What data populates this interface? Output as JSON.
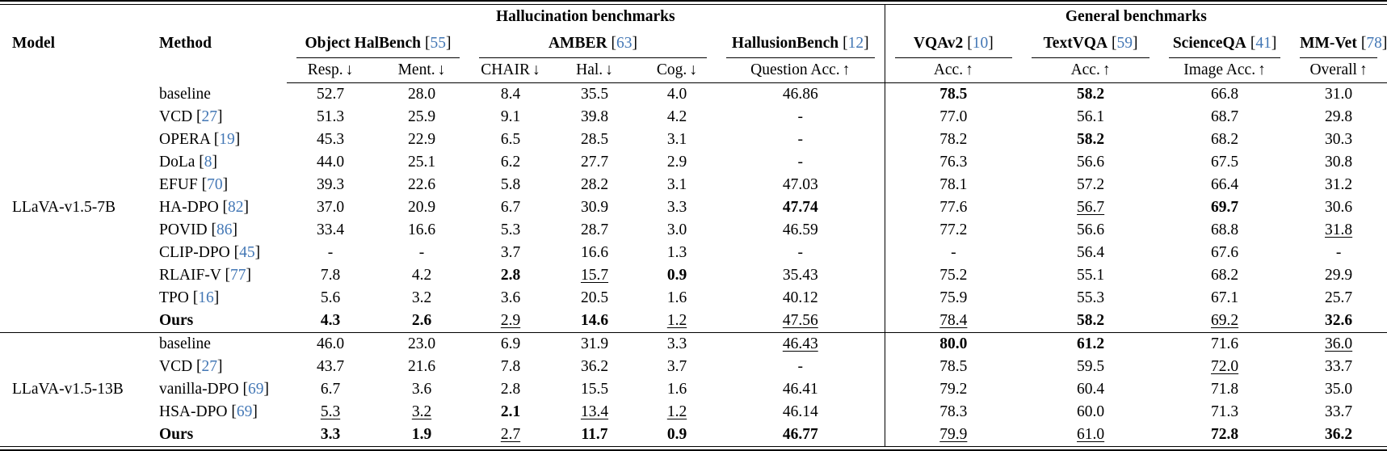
{
  "meta": {
    "accent_blue": "#4377b5",
    "text_color": "#000000",
    "rule_color": "#000000"
  },
  "header": {
    "model_label": "Model",
    "method_label": "Method",
    "bracket_open": "[",
    "bracket_close": "]",
    "groups": [
      {
        "label": "Hallucination benchmarks"
      },
      {
        "label": "General benchmarks"
      }
    ],
    "benchmarks": [
      {
        "name": "Object HalBench",
        "cite": "55"
      },
      {
        "name": "AMBER",
        "cite": "63"
      },
      {
        "name": "HallusionBench",
        "cite": "12"
      },
      {
        "name": "VQAv2",
        "cite": "10"
      },
      {
        "name": "TextVQA",
        "cite": "59"
      },
      {
        "name": "ScienceQA",
        "cite": "41"
      },
      {
        "name": "MM-Vet",
        "cite": "78"
      }
    ],
    "metrics": [
      {
        "label": "Resp.",
        "arrow": "↓"
      },
      {
        "label": "Ment.",
        "arrow": "↓"
      },
      {
        "label": "CHAIR",
        "arrow": "↓"
      },
      {
        "label": "Hal.",
        "arrow": "↓"
      },
      {
        "label": "Cog.",
        "arrow": "↓"
      },
      {
        "label": "Question Acc.",
        "arrow": "↑"
      },
      {
        "label": "Acc.",
        "arrow": "↑"
      },
      {
        "label": "Acc.",
        "arrow": "↑"
      },
      {
        "label": "Image Acc.",
        "arrow": "↑"
      },
      {
        "label": "Overall",
        "arrow": "↑"
      }
    ]
  },
  "sections": [
    {
      "model": "LLaVA-v1.5-7B",
      "rows": [
        {
          "method": "baseline",
          "cite": null,
          "bold": false,
          "values": [
            "52.7",
            "28.0",
            "8.4",
            "35.5",
            "4.0",
            "46.86",
            "78.5",
            "58.2",
            "66.8",
            "31.0"
          ],
          "styles": [
            "",
            "",
            "",
            "",
            "",
            "",
            "b",
            "b",
            "",
            ""
          ]
        },
        {
          "method": "VCD",
          "cite": "27",
          "bold": false,
          "values": [
            "51.3",
            "25.9",
            "9.1",
            "39.8",
            "4.2",
            "-",
            "77.0",
            "56.1",
            "68.7",
            "29.8"
          ],
          "styles": [
            "",
            "",
            "",
            "",
            "",
            "",
            "",
            "",
            "",
            ""
          ]
        },
        {
          "method": "OPERA",
          "cite": "19",
          "bold": false,
          "values": [
            "45.3",
            "22.9",
            "6.5",
            "28.5",
            "3.1",
            "-",
            "78.2",
            "58.2",
            "68.2",
            "30.3"
          ],
          "styles": [
            "",
            "",
            "",
            "",
            "",
            "",
            "",
            "b",
            "",
            ""
          ]
        },
        {
          "method": "DoLa",
          "cite": "8",
          "bold": false,
          "values": [
            "44.0",
            "25.1",
            "6.2",
            "27.7",
            "2.9",
            "-",
            "76.3",
            "56.6",
            "67.5",
            "30.8"
          ],
          "styles": [
            "",
            "",
            "",
            "",
            "",
            "",
            "",
            "",
            "",
            ""
          ]
        },
        {
          "method": "EFUF",
          "cite": "70",
          "bold": false,
          "values": [
            "39.3",
            "22.6",
            "5.8",
            "28.2",
            "3.1",
            "47.03",
            "78.1",
            "57.2",
            "66.4",
            "31.2"
          ],
          "styles": [
            "",
            "",
            "",
            "",
            "",
            "",
            "",
            "",
            "",
            ""
          ]
        },
        {
          "method": "HA-DPO",
          "cite": "82",
          "bold": false,
          "values": [
            "37.0",
            "20.9",
            "6.7",
            "30.9",
            "3.3",
            "47.74",
            "77.6",
            "56.7",
            "69.7",
            "30.6"
          ],
          "styles": [
            "",
            "",
            "",
            "",
            "",
            "b",
            "",
            "u",
            "b",
            ""
          ]
        },
        {
          "method": "POVID",
          "cite": "86",
          "bold": false,
          "values": [
            "33.4",
            "16.6",
            "5.3",
            "28.7",
            "3.0",
            "46.59",
            "77.2",
            "56.6",
            "68.8",
            "31.8"
          ],
          "styles": [
            "",
            "",
            "",
            "",
            "",
            "",
            "",
            "",
            "",
            "u"
          ]
        },
        {
          "method": "CLIP-DPO",
          "cite": "45",
          "bold": false,
          "values": [
            "-",
            "-",
            "3.7",
            "16.6",
            "1.3",
            "-",
            "-",
            "56.4",
            "67.6",
            "-"
          ],
          "styles": [
            "",
            "",
            "",
            "",
            "",
            "",
            "",
            "",
            "",
            ""
          ]
        },
        {
          "method": "RLAIF-V",
          "cite": "77",
          "bold": false,
          "values": [
            "7.8",
            "4.2",
            "2.8",
            "15.7",
            "0.9",
            "35.43",
            "75.2",
            "55.1",
            "68.2",
            "29.9"
          ],
          "styles": [
            "",
            "",
            "b",
            "u",
            "b",
            "",
            "",
            "",
            "",
            ""
          ]
        },
        {
          "method": "TPO",
          "cite": "16",
          "bold": false,
          "values": [
            "5.6",
            "3.2",
            "3.6",
            "20.5",
            "1.6",
            "40.12",
            "75.9",
            "55.3",
            "67.1",
            "25.7"
          ],
          "styles": [
            "",
            "",
            "",
            "",
            "",
            "",
            "",
            "",
            "",
            ""
          ]
        },
        {
          "method": "Ours",
          "cite": null,
          "bold": true,
          "values": [
            "4.3",
            "2.6",
            "2.9",
            "14.6",
            "1.2",
            "47.56",
            "78.4",
            "58.2",
            "69.2",
            "32.6"
          ],
          "styles": [
            "b",
            "b",
            "u",
            "b",
            "u",
            "u",
            "u",
            "b",
            "u",
            "b"
          ]
        }
      ]
    },
    {
      "model": "LLaVA-v1.5-13B",
      "rows": [
        {
          "method": "baseline",
          "cite": null,
          "bold": false,
          "values": [
            "46.0",
            "23.0",
            "6.9",
            "31.9",
            "3.3",
            "46.43",
            "80.0",
            "61.2",
            "71.6",
            "36.0"
          ],
          "styles": [
            "",
            "",
            "",
            "",
            "",
            "u",
            "b",
            "b",
            "",
            "u"
          ]
        },
        {
          "method": "VCD",
          "cite": "27",
          "bold": false,
          "values": [
            "43.7",
            "21.6",
            "7.8",
            "36.2",
            "3.7",
            "-",
            "78.5",
            "59.5",
            "72.0",
            "33.7"
          ],
          "styles": [
            "",
            "",
            "",
            "",
            "",
            "",
            "",
            "",
            "u",
            ""
          ]
        },
        {
          "method": "vanilla-DPO",
          "cite": "69",
          "bold": false,
          "values": [
            "6.7",
            "3.6",
            "2.8",
            "15.5",
            "1.6",
            "46.41",
            "79.2",
            "60.4",
            "71.8",
            "35.0"
          ],
          "styles": [
            "",
            "",
            "",
            "",
            "",
            "",
            "",
            "",
            "",
            ""
          ]
        },
        {
          "method": "HSA-DPO",
          "cite": "69",
          "bold": false,
          "values": [
            "5.3",
            "3.2",
            "2.1",
            "13.4",
            "1.2",
            "46.14",
            "78.3",
            "60.0",
            "71.3",
            "33.7"
          ],
          "styles": [
            "u",
            "u",
            "b",
            "u",
            "u",
            "",
            "",
            "",
            "",
            ""
          ]
        },
        {
          "method": "Ours",
          "cite": null,
          "bold": true,
          "values": [
            "3.3",
            "1.9",
            "2.7",
            "11.7",
            "0.9",
            "46.77",
            "79.9",
            "61.0",
            "72.8",
            "36.2"
          ],
          "styles": [
            "b",
            "b",
            "u",
            "b",
            "b",
            "b",
            "u",
            "u",
            "b",
            "b"
          ]
        }
      ]
    }
  ]
}
